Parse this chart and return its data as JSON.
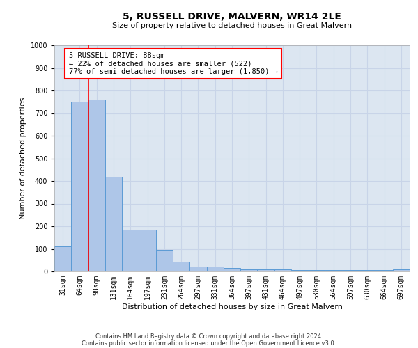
{
  "title": "5, RUSSELL DRIVE, MALVERN, WR14 2LE",
  "subtitle": "Size of property relative to detached houses in Great Malvern",
  "xlabel": "Distribution of detached houses by size in Great Malvern",
  "ylabel": "Number of detached properties",
  "footnote1": "Contains HM Land Registry data © Crown copyright and database right 2024.",
  "footnote2": "Contains public sector information licensed under the Open Government Licence v3.0.",
  "categories": [
    "31sqm",
    "64sqm",
    "98sqm",
    "131sqm",
    "164sqm",
    "197sqm",
    "231sqm",
    "264sqm",
    "297sqm",
    "331sqm",
    "364sqm",
    "397sqm",
    "431sqm",
    "464sqm",
    "497sqm",
    "530sqm",
    "564sqm",
    "597sqm",
    "630sqm",
    "664sqm",
    "697sqm"
  ],
  "values": [
    110,
    750,
    760,
    420,
    185,
    185,
    95,
    42,
    21,
    21,
    15,
    10,
    10,
    10,
    7,
    5,
    5,
    5,
    5,
    5,
    10
  ],
  "bar_color": "#aec6e8",
  "bar_edge_color": "#5b9bd5",
  "grid_color": "#c8d4e8",
  "background_color": "#dce6f1",
  "red_line_x": 1.5,
  "annotation_text1": "5 RUSSELL DRIVE: 88sqm",
  "annotation_text2": "← 22% of detached houses are smaller (522)",
  "annotation_text3": "77% of semi-detached houses are larger (1,850) →",
  "annotation_box_color": "white",
  "annotation_border_color": "red",
  "ylim": [
    0,
    1000
  ],
  "yticks": [
    0,
    100,
    200,
    300,
    400,
    500,
    600,
    700,
    800,
    900,
    1000
  ],
  "title_fontsize": 10,
  "subtitle_fontsize": 8,
  "ylabel_fontsize": 8,
  "xlabel_fontsize": 8,
  "tick_fontsize": 7,
  "annot_fontsize": 7.5,
  "footnote_fontsize": 6
}
